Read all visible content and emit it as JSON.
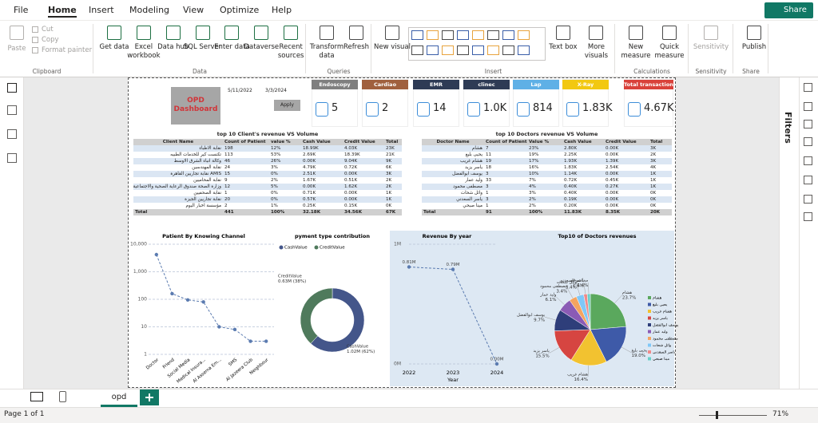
{
  "menu": {
    "tabs": [
      "File",
      "Home",
      "Insert",
      "Modeling",
      "View",
      "Optimize",
      "Help"
    ],
    "share": "Share"
  },
  "ribbon": {
    "groups": [
      {
        "label": "Clipboard",
        "buttons": [
          "Paste",
          "Cut",
          "Copy",
          "Format painter"
        ]
      },
      {
        "label": "Data",
        "buttons": [
          "Get data",
          "Excel workbook",
          "Data hub",
          "SQL Server",
          "Enter data",
          "Dataverse",
          "Recent sources"
        ]
      },
      {
        "label": "Queries",
        "buttons": [
          "Transform data",
          "Refresh"
        ]
      },
      {
        "label": "Insert",
        "buttons": [
          "New visual",
          "Text box",
          "More visuals"
        ]
      },
      {
        "label": "Calculations",
        "buttons": [
          "New measure",
          "Quick measure"
        ]
      },
      {
        "label": "Sensitivity",
        "buttons": [
          "Sensitivity"
        ]
      },
      {
        "label": "Share",
        "buttons": [
          "Publish"
        ]
      }
    ]
  },
  "report": {
    "title": "OPD Dashboard",
    "date_from": "5/11/2022",
    "date_to": "3/3/2024",
    "apply": "Apply",
    "cards": [
      {
        "label": "Endoscopy",
        "value": "5",
        "color": "#7f7f7f"
      },
      {
        "label": "Cardiao",
        "value": "2",
        "color": "#a0603e"
      },
      {
        "label": "EMR",
        "value": "14",
        "color": "#2e3b55"
      },
      {
        "label": "clinec",
        "value": "1.0K",
        "color": "#2e3b55"
      },
      {
        "label": "Lap",
        "value": "814",
        "color": "#5fb0e6"
      },
      {
        "label": "X-Ray",
        "value": "1.83K",
        "color": "#f2c811"
      },
      {
        "label": "Total transaction",
        "value": "4.67K",
        "color": "#d9413a"
      }
    ],
    "client_table": {
      "title": "top 10 Client's revenue VS Volume",
      "columns": [
        "Client Name",
        "Count of Patient",
        "value %",
        "Cash Value",
        "Credit Value",
        "Total"
      ],
      "rows": [
        [
          "نقابة الاطباء",
          "198",
          "12%",
          "18.99K",
          "4.03K",
          "23K"
        ],
        [
          "تكنست كير للخدمات الطبيه",
          "113",
          "53%",
          "2.69K",
          "18.39K",
          "21K"
        ],
        [
          "وكالة انباء الشرق الاوسط",
          "46",
          "26%",
          "0.00K",
          "9.04K",
          "9K"
        ],
        [
          "نقابة المهندسين",
          "24",
          "3%",
          "4.79K",
          "0.72K",
          "6K"
        ],
        [
          "AMIS نقابة تجاريين القاهرة",
          "15",
          "0%",
          "2.51K",
          "0.00K",
          "3K"
        ],
        [
          "نقابة المحاميين",
          "9",
          "2%",
          "1.67K",
          "0.51K",
          "2K"
        ],
        [
          "وزارة الصحة صندوق الرعاية الصحية والاجتماعية",
          "12",
          "5%",
          "0.00K",
          "1.62K",
          "2K"
        ],
        [
          "نقابة الصحفيين",
          "1",
          "0%",
          "0.71K",
          "0.00K",
          "1K"
        ],
        [
          "نقابة تجاريين الجيزة",
          "20",
          "0%",
          "0.57K",
          "0.00K",
          "1K"
        ],
        [
          "مؤسسة اخبار اليوم",
          "2",
          "1%",
          "0.25K",
          "0.15K",
          "0K"
        ]
      ],
      "total": [
        "Total",
        "441",
        "100%",
        "32.18K",
        "34.56K",
        "67K"
      ]
    },
    "doctor_table": {
      "title": "top 10 Doctors revenue VS Volume",
      "columns": [
        "Doctor Name",
        "Count of Patient",
        "Value %",
        "Cash Value",
        "Credit Value",
        "Total"
      ],
      "rows": [
        [
          "هشام",
          "7",
          "23%",
          "2.80K",
          "0.00K",
          "3K"
        ],
        [
          "يحيى بليغ",
          "11",
          "19%",
          "2.25K",
          "0.00K",
          "2K"
        ],
        [
          "هشام غريب",
          "19",
          "17%",
          "1.93K",
          "1.39K",
          "3K"
        ],
        [
          "ياسر يزيد",
          "18",
          "16%",
          "1.83K",
          "2.54K",
          "4K"
        ],
        [
          "يوسف ابوالفضل",
          "3",
          "10%",
          "1.14K",
          "0.00K",
          "1K"
        ],
        [
          "وليد عمار",
          "33",
          "7%",
          "0.72K",
          "0.45K",
          "1K"
        ],
        [
          "مصطفى محمود",
          "3",
          "4%",
          "0.40K",
          "0.27K",
          "1K"
        ],
        [
          "وائل شحات",
          "1",
          "3%",
          "0.40K",
          "0.00K",
          "0K"
        ],
        [
          "ياسر السعدني",
          "3",
          "2%",
          "0.19K",
          "0.00K",
          "0K"
        ],
        [
          "مينا صبحي",
          "1",
          "2%",
          "0.20K",
          "0.00K",
          "0K"
        ]
      ],
      "total": [
        "Total",
        "91",
        "100%",
        "11.83K",
        "8.35K",
        "20K"
      ]
    }
  },
  "chart_data": [
    {
      "type": "line",
      "title": "Patient By Knowing Channel",
      "categories": [
        "Doctor",
        "Friend",
        "Social Media",
        "Medical Insura...",
        "Al Assema Em...",
        "SMS",
        "Al Jazeera Club",
        "Neighbour"
      ],
      "values": [
        4200,
        160,
        95,
        80,
        10,
        8,
        3,
        3
      ],
      "color": "#5b7bb0",
      "log_scale": true,
      "grid": true,
      "ylim": [
        1,
        10000
      ],
      "yticks": [
        1,
        10,
        100,
        {
          "value": 1000,
          "label": "1,000"
        },
        {
          "value": 10000,
          "label": "10,000"
        }
      ]
    },
    {
      "type": "donut",
      "title": "pyment type contribution",
      "categories": [
        "CashValue",
        "CreditValue"
      ],
      "values": [
        1.02,
        0.63
      ],
      "value_labels": [
        "1.02M (62%)",
        "0.63M (38%)"
      ],
      "colors": [
        "#44568a",
        "#4f7a5c"
      ]
    },
    {
      "type": "line",
      "title": "Revenue By year",
      "x": [
        2022,
        2023,
        2024
      ],
      "values": [
        0.81,
        0.79,
        0
      ],
      "value_labels": [
        "0.81M",
        "0.79M",
        "0.00M"
      ],
      "color": "#5b7bb0",
      "grid": true,
      "xlim": [
        2022,
        2024
      ],
      "xticks": [
        2022,
        2023,
        2024
      ],
      "xlabel": "Year",
      "ylim": [
        0,
        1
      ],
      "yticks": [
        {
          "value": 0,
          "label": "0M"
        },
        {
          "value": 1,
          "label": "1M"
        }
      ]
    },
    {
      "type": "pie",
      "title": "Top10 of Doctors revenues",
      "categories": [
        "هشام",
        "يحيى بليغ",
        "هشام غريب",
        "ياسر يزيد",
        "يوسف ابوالفضل",
        "وليد عمار",
        "مصطفى محمود",
        "وائل شحات",
        "ياسر السعدني",
        "مينا صبحي"
      ],
      "values": [
        23.7,
        19.0,
        16.4,
        15.5,
        9.7,
        6.1,
        3.4,
        3.4,
        1.6,
        1.4
      ],
      "value_labels": [
        "23.7%",
        "19.0%",
        "16.4%",
        "15.5%",
        "9.7%",
        "6.1%",
        "3.4%",
        "3.4%",
        "1.6%",
        "1.4%"
      ],
      "colors": [
        "#5aa85d",
        "#3e5aa8",
        "#f2c230",
        "#d64541",
        "#2e3e7a",
        "#8a5bb5",
        "#f4a460",
        "#7fc8f8",
        "#f08a8a",
        "#6acfc7"
      ]
    }
  ],
  "filters": {
    "label": "Filters"
  },
  "pages": {
    "tabs": [
      "opd"
    ]
  },
  "status": {
    "page": "Page 1 of 1",
    "zoom": "71%"
  }
}
